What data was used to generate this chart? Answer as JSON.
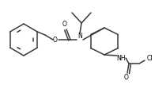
{
  "bg_color": "#ffffff",
  "line_color": "#3a3a3a",
  "lw": 1.1,
  "figsize": [
    1.96,
    1.07
  ],
  "dpi": 100,
  "xlim": [
    0,
    196
  ],
  "ylim": [
    0,
    107
  ]
}
